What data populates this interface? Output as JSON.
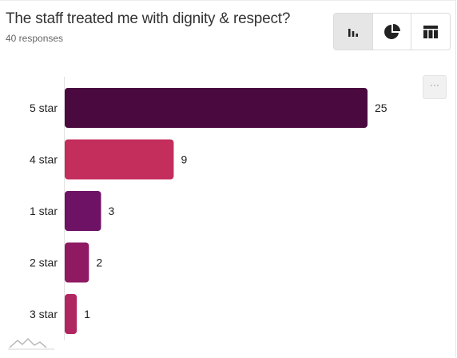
{
  "header": {
    "title": "The staff treated me with dignity & respect?",
    "subtitle": "40 responses"
  },
  "toolbar": {
    "buttons": [
      {
        "icon": "bar-chart-icon",
        "active": true
      },
      {
        "icon": "pie-chart-icon",
        "active": false
      },
      {
        "icon": "table-icon",
        "active": false
      }
    ],
    "more_label": "···"
  },
  "chart_data": {
    "type": "bar",
    "orientation": "horizontal",
    "categories": [
      "5 star",
      "4 star",
      "1 star",
      "2 star",
      "3 star"
    ],
    "values": [
      25,
      9,
      3,
      2,
      1
    ],
    "colors": [
      "#4a0a3f",
      "#c42e5c",
      "#6e1265",
      "#8f1a62",
      "#b02660"
    ],
    "title": "",
    "xlabel": "",
    "ylabel": "",
    "xlim": [
      0,
      25
    ],
    "grid": false,
    "data_labels": true
  }
}
